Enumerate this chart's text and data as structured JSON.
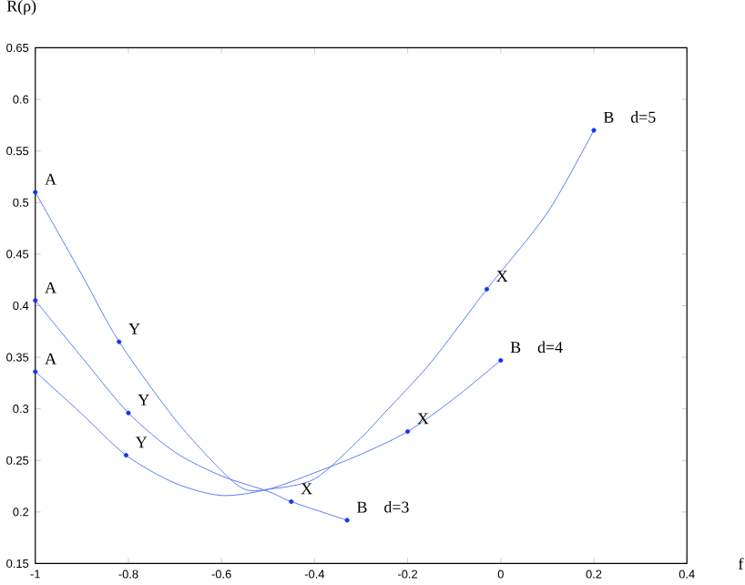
{
  "chart_data": {
    "type": "line",
    "xlabel": "f",
    "ylabel": "R(ρ)",
    "xlim": [
      -1,
      0.4
    ],
    "ylim": [
      0.15,
      0.65
    ],
    "xticks": [
      -1,
      -0.8,
      -0.6,
      -0.4,
      -0.2,
      0,
      0.2,
      0.4
    ],
    "yticks": [
      0.15,
      0.2,
      0.25,
      0.3,
      0.35,
      0.4,
      0.45,
      0.5,
      0.55,
      0.6,
      0.65
    ],
    "grid": false,
    "series": [
      {
        "name": "d=5",
        "color": "#5b7bff",
        "x": [
          -1,
          -0.9,
          -0.82,
          -0.7,
          -0.6,
          -0.55,
          -0.5,
          -0.4,
          -0.3,
          -0.25,
          -0.15,
          -0.03,
          0.1,
          0.2
        ],
        "values": [
          0.51,
          0.43,
          0.365,
          0.29,
          0.24,
          0.222,
          0.222,
          0.232,
          0.272,
          0.296,
          0.345,
          0.416,
          0.49,
          0.57
        ]
      },
      {
        "name": "d=3",
        "color": "#5b7bff",
        "x": [
          -1,
          -0.9,
          -0.8,
          -0.7,
          -0.6,
          -0.5,
          -0.45,
          -0.33
        ],
        "values": [
          0.405,
          0.35,
          0.296,
          0.258,
          0.235,
          0.22,
          0.21,
          0.192
        ]
      },
      {
        "name": "d=4",
        "color": "#5b7bff",
        "x": [
          -1,
          -0.9,
          -0.805,
          -0.7,
          -0.6,
          -0.5,
          -0.4,
          -0.3,
          -0.2,
          -0.1,
          0
        ],
        "values": [
          0.336,
          0.295,
          0.255,
          0.228,
          0.216,
          0.222,
          0.238,
          0.256,
          0.278,
          0.31,
          0.347
        ]
      },
      {
        "type": "scatter",
        "marker": "circle",
        "color": "#1536f0",
        "x": [
          -1,
          -0.82,
          -0.03,
          0.2,
          -1,
          -0.8,
          -0.45,
          -0.33,
          -1,
          -0.805,
          -0.2,
          0
        ],
        "values": [
          0.51,
          0.365,
          0.416,
          0.57,
          0.405,
          0.296,
          0.21,
          0.192,
          0.336,
          0.255,
          0.278,
          0.347
        ]
      }
    ],
    "annotations": [
      {
        "text": "A",
        "x": -1,
        "y": 0.51
      },
      {
        "text": "A",
        "x": -1,
        "y": 0.405
      },
      {
        "text": "A",
        "x": -1,
        "y": 0.336
      },
      {
        "text": "Y",
        "x": -0.82,
        "y": 0.365
      },
      {
        "text": "Y",
        "x": -0.8,
        "y": 0.296
      },
      {
        "text": "Y",
        "x": -0.805,
        "y": 0.255
      },
      {
        "text": "X",
        "x": -0.45,
        "y": 0.21
      },
      {
        "text": "X",
        "x": -0.2,
        "y": 0.278
      },
      {
        "text": "X",
        "x": -0.03,
        "y": 0.416
      },
      {
        "text": "B",
        "x": 0.2,
        "y": 0.57
      },
      {
        "text": "B",
        "x": 0,
        "y": 0.347
      },
      {
        "text": "B",
        "x": -0.33,
        "y": 0.192
      }
    ]
  }
}
